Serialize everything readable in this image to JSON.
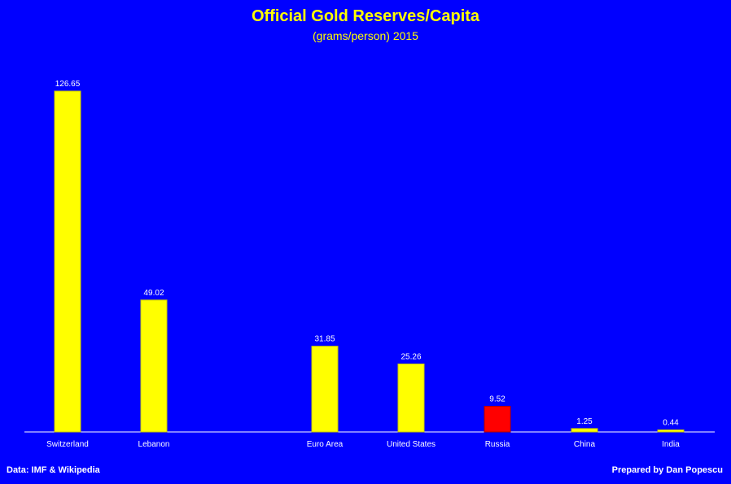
{
  "chart_data": {
    "type": "bar",
    "title": "Official Gold Reserves/Capita",
    "subtitle": "(grams/person) 2015",
    "categories": [
      "Switzerland",
      "Lebanon",
      "Euro Area",
      "United States",
      "Russia",
      "China",
      "India"
    ],
    "values": [
      126.65,
      49.02,
      31.85,
      25.26,
      9.52,
      1.25,
      0.44
    ],
    "value_labels": [
      "126.65",
      "49.02",
      "31.85",
      "25.26",
      "9.52",
      "1.25",
      "0.44"
    ],
    "highlight_category": "Russia",
    "ylim": [
      0,
      126.65
    ],
    "grid": false,
    "legend": "none",
    "colors": {
      "background": "#0000ff",
      "bar": "#ffff00",
      "highlight": "#ff0000",
      "text": "#ffffff",
      "title": "#ffff00"
    }
  },
  "footer": {
    "source": "Data: IMF & Wikipedia",
    "credit": "Prepared by Dan Popescu"
  }
}
